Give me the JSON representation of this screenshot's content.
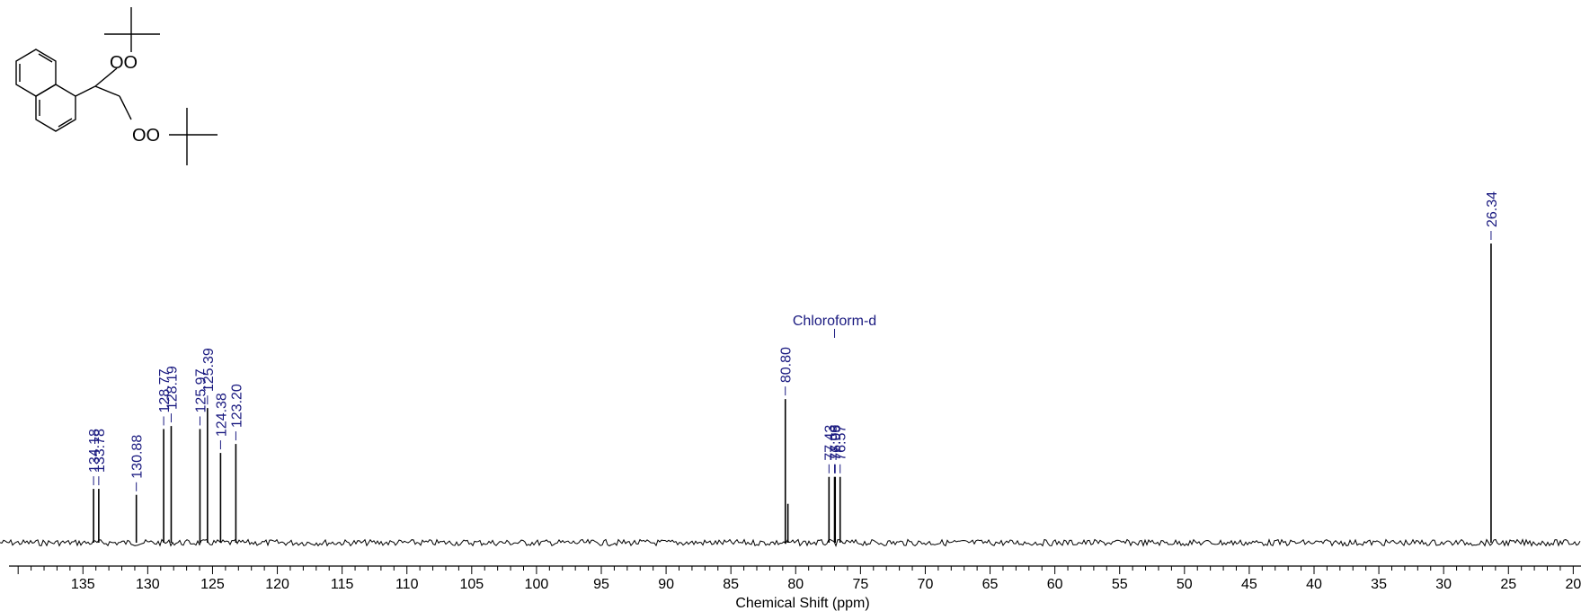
{
  "chart_data": {
    "type": "line",
    "title": "",
    "xlabel": "Chemical Shift (ppm)",
    "ylabel": "",
    "x_reversed": true,
    "xlim": [
      141.4,
      19.4
    ],
    "x_ticks": [
      135,
      130,
      125,
      120,
      115,
      110,
      105,
      100,
      95,
      90,
      85,
      80,
      75,
      70,
      65,
      60,
      55,
      50,
      45,
      40,
      35,
      30,
      25,
      20
    ],
    "x_tick_labels": [
      "135",
      "130",
      "125",
      "120",
      "115",
      "110",
      "105",
      "100",
      "95",
      "90",
      "85",
      "80",
      "75",
      "70",
      "65",
      "60",
      "55",
      "50",
      "45",
      "40",
      "35",
      "30",
      "25",
      "20"
    ],
    "peaks": [
      {
        "x": 134.18,
        "label": "134.18",
        "height": 0.18
      },
      {
        "x": 133.78,
        "label": "133.78",
        "height": 0.18
      },
      {
        "x": 130.88,
        "label": "130.88",
        "height": 0.16
      },
      {
        "x": 128.77,
        "label": "128.77",
        "height": 0.38
      },
      {
        "x": 128.19,
        "label": "128.19",
        "height": 0.39
      },
      {
        "x": 125.97,
        "label": "125.97",
        "height": 0.38
      },
      {
        "x": 125.39,
        "label": "125.39",
        "height": 0.45
      },
      {
        "x": 124.38,
        "label": "124.38",
        "height": 0.3
      },
      {
        "x": 123.2,
        "label": "123.20",
        "height": 0.33
      },
      {
        "x": 80.8,
        "label": "80.80",
        "height": 0.48
      },
      {
        "x": 80.6,
        "label": "",
        "height": 0.13
      },
      {
        "x": 77.43,
        "label": "77.43",
        "height": 0.22
      },
      {
        "x": 77.0,
        "label": "77.00",
        "height": 0.22
      },
      {
        "x": 76.95,
        "label": "76.95",
        "height": 0.22
      },
      {
        "x": 76.57,
        "label": "76.57",
        "height": 0.22
      },
      {
        "x": 26.34,
        "label": "26.34",
        "height": 1.0
      }
    ],
    "annotations": [
      {
        "text": "Chloroform-d",
        "x": 77.0
      }
    ],
    "colors": {
      "spectrum": "#000000",
      "labels": "#1a1a80"
    }
  },
  "structure": {
    "labels": [
      "OO",
      "OO"
    ]
  }
}
